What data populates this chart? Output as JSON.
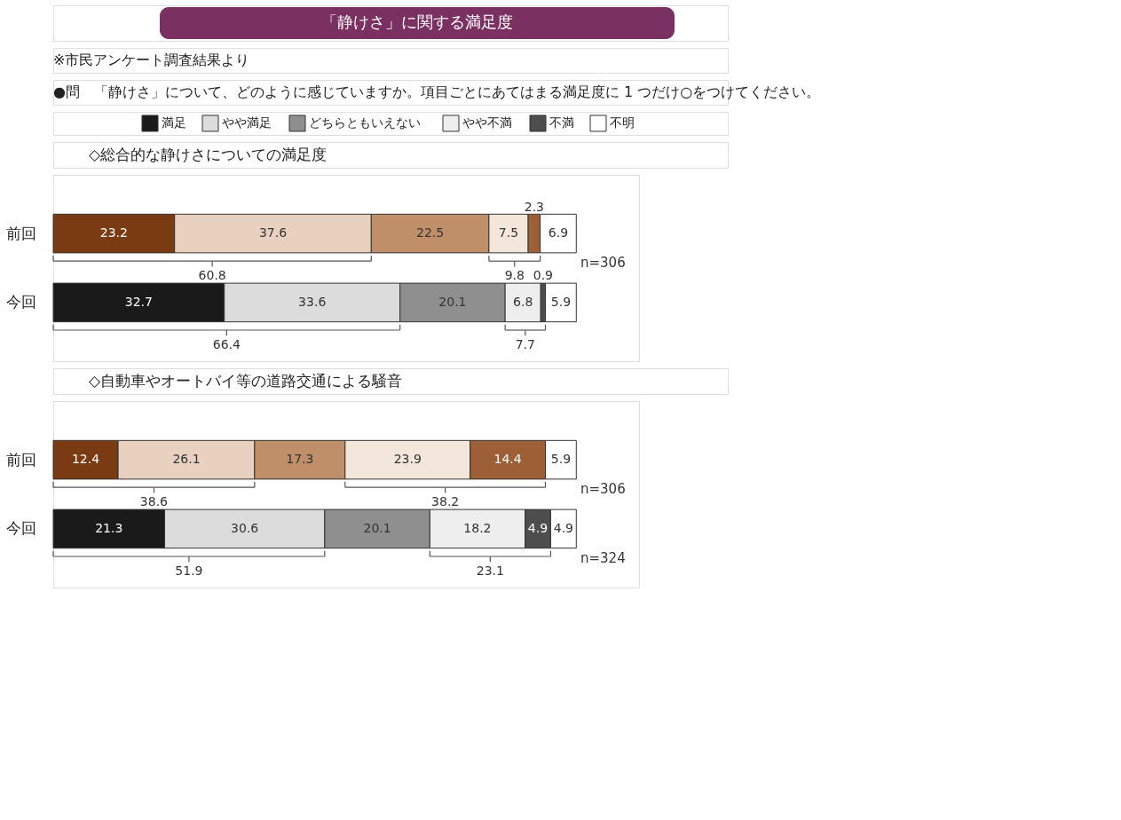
{
  "chart_data": [
    {
      "type": "bar",
      "orientation": "horizontal",
      "stacked": true,
      "title": "「静けさ」に関する満足度",
      "subtitle": "◇総合的な静けさについての満足度",
      "categories": [
        "前回",
        "今回"
      ],
      "data_labels": true,
      "legend": "top",
      "series": [
        {
          "name": "満足",
          "color": "#1a1a1a",
          "colors": [
            "#7a3b12",
            "#1a1a1a"
          ],
          "values": [
            23.2,
            32.7
          ]
        },
        {
          "name": "やや満足",
          "color": "#dcdcdc",
          "colors": [
            "#e8d2bf",
            "#dcdcdc"
          ],
          "values": [
            37.6,
            33.6
          ]
        },
        {
          "name": "どちらともいえない",
          "color": "#8f8f8f",
          "colors": [
            "#bf8f6a",
            "#8f8f8f"
          ],
          "values": [
            22.5,
            20.1
          ]
        },
        {
          "name": "やや不満",
          "color": "#eeeeee",
          "colors": [
            "#f3e6da",
            "#eeeeee"
          ],
          "values": [
            7.5,
            6.8
          ]
        },
        {
          "name": "不満",
          "color": "#4d4d4d",
          "colors": [
            "#9c5f36",
            "#4d4d4d"
          ],
          "values": [
            2.3,
            0.9
          ]
        },
        {
          "name": "不明",
          "color": "#ffffff",
          "colors": [
            "#ffffff",
            "#ffffff"
          ],
          "values": [
            6.9,
            5.9
          ]
        }
      ],
      "annotations": [
        "※市民アンケート調査結果より",
        "●問　「静けさ」について、どのように感じていますか。項目ごとにあてはまる満足度に 1 つだけ○をつけてください。",
        "60.8",
        "9.8",
        "n=306",
        "66.4",
        "7.7"
      ]
    },
    {
      "type": "bar",
      "orientation": "horizontal",
      "stacked": true,
      "title": "◇自動車やオートバイ等の道路交通による騒音",
      "categories": [
        "前回",
        "今回"
      ],
      "data_labels": true,
      "series": [
        {
          "colors": [
            "#7a3b12",
            "#1a1a1a"
          ],
          "values": [
            12.4,
            21.3
          ]
        },
        {
          "colors": [
            "#e8d2bf",
            "#dcdcdc"
          ],
          "values": [
            26.1,
            30.6
          ]
        },
        {
          "colors": [
            "#bf8f6a",
            "#8f8f8f"
          ],
          "values": [
            17.3,
            20.1
          ]
        },
        {
          "colors": [
            "#f3e6da",
            "#eeeeee"
          ],
          "values": [
            23.9,
            18.2
          ]
        },
        {
          "colors": [
            "#9c5f36",
            "#4d4d4d"
          ],
          "values": [
            14.4,
            4.9
          ]
        },
        {
          "colors": [
            "#ffffff",
            "#ffffff"
          ],
          "values": [
            5.9,
            4.9
          ]
        }
      ],
      "annotations": [
        "38.6",
        "38.2",
        "n=306",
        "51.9",
        "23.1",
        "n=324"
      ]
    }
  ]
}
